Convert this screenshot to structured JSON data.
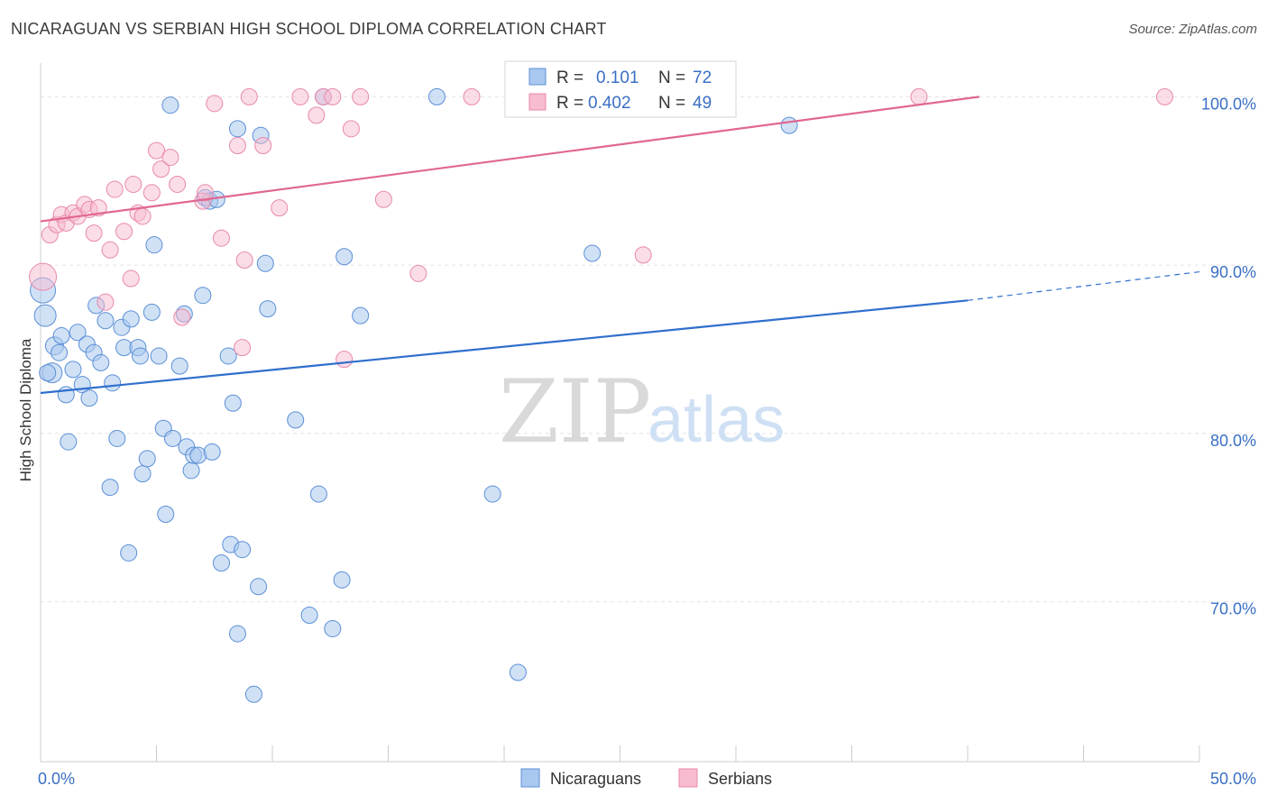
{
  "title": "NICARAGUAN VS SERBIAN HIGH SCHOOL DIPLOMA CORRELATION CHART",
  "source": "Source: ZipAtlas.com",
  "watermark": {
    "zip": "ZIP",
    "atlas": "atlas"
  },
  "legend": {
    "rows": [
      {
        "r_label": "R =",
        "r_value": "0.101",
        "n_label": "N =",
        "n_value": "72"
      },
      {
        "r_label": "R =",
        "r_value": "0.402",
        "n_label": "N =",
        "n_value": "49"
      }
    ]
  },
  "bottom_legend": [
    "Nicaraguans",
    "Serbians"
  ],
  "colors": {
    "blue_fill": "#a9c8ef",
    "blue_stroke": "#5b8fd6",
    "blue_line": "#2f6fcc",
    "pink_fill": "#f7bcd0",
    "pink_stroke": "#e889a9",
    "pink_line": "#e06792",
    "axis_label": "#3a6fc4"
  },
  "chart_data": {
    "type": "scatter",
    "title": "NICARAGUAN VS SERBIAN HIGH SCHOOL DIPLOMA CORRELATION CHART",
    "xlabel": "",
    "ylabel": "High School Diploma",
    "xlim": [
      0,
      50
    ],
    "ylim": [
      60.5,
      102
    ],
    "x_tick_labels": [
      "0.0%",
      "50.0%"
    ],
    "y_ticks": [
      70,
      80,
      90,
      100
    ],
    "y_tick_labels": [
      "70.0%",
      "80.0%",
      "90.0%",
      "100.0%"
    ],
    "grid": true,
    "legend_position": "top-center",
    "series": [
      {
        "name": "Nicaraguans",
        "r": 0.101,
        "n": 72,
        "trend": {
          "x0": 0,
          "y0": 82.4,
          "x1": 40,
          "y1": 87.9,
          "dashed_to_x": 50,
          "dashed_to_y": 89.6
        },
        "points": [
          [
            0.1,
            88.5,
            14
          ],
          [
            0.2,
            87.0,
            12
          ],
          [
            0.5,
            83.6,
            11
          ],
          [
            0.6,
            85.2,
            10
          ],
          [
            0.8,
            84.8,
            9
          ],
          [
            0.9,
            85.8,
            9
          ],
          [
            1.1,
            82.3,
            9
          ],
          [
            1.2,
            79.5,
            9
          ],
          [
            1.4,
            83.8,
            9
          ],
          [
            1.6,
            86.0,
            9
          ],
          [
            1.8,
            82.9,
            9
          ],
          [
            2.0,
            85.3,
            9
          ],
          [
            2.1,
            82.1,
            9
          ],
          [
            2.3,
            84.8,
            9
          ],
          [
            2.4,
            87.6,
            9
          ],
          [
            2.6,
            84.2,
            9
          ],
          [
            2.8,
            86.7,
            9
          ],
          [
            3.0,
            76.8,
            9
          ],
          [
            3.1,
            83.0,
            9
          ],
          [
            3.3,
            79.7,
            9
          ],
          [
            3.5,
            86.3,
            9
          ],
          [
            3.6,
            85.1,
            9
          ],
          [
            3.8,
            72.9,
            9
          ],
          [
            3.9,
            86.8,
            9
          ],
          [
            4.2,
            85.1,
            9
          ],
          [
            4.3,
            84.6,
            9
          ],
          [
            4.4,
            77.6,
            9
          ],
          [
            4.6,
            78.5,
            9
          ],
          [
            4.8,
            87.2,
            9
          ],
          [
            4.9,
            91.2,
            9
          ],
          [
            5.1,
            84.6,
            9
          ],
          [
            5.3,
            80.3,
            9
          ],
          [
            5.4,
            75.2,
            9
          ],
          [
            5.6,
            99.5,
            9
          ],
          [
            5.7,
            79.7,
            9
          ],
          [
            6.0,
            84.0,
            9
          ],
          [
            6.2,
            87.1,
            9
          ],
          [
            6.3,
            79.2,
            9
          ],
          [
            6.5,
            77.8,
            9
          ],
          [
            6.6,
            78.7,
            9
          ],
          [
            6.8,
            78.7,
            9
          ],
          [
            7.0,
            88.2,
            9
          ],
          [
            7.1,
            94.0,
            9
          ],
          [
            7.3,
            93.8,
            9
          ],
          [
            7.4,
            78.9,
            9
          ],
          [
            7.6,
            93.9,
            9
          ],
          [
            7.8,
            72.3,
            9
          ],
          [
            8.1,
            84.6,
            9
          ],
          [
            8.2,
            73.4,
            9
          ],
          [
            8.3,
            81.8,
            9
          ],
          [
            8.5,
            98.1,
            9
          ],
          [
            8.5,
            68.1,
            9
          ],
          [
            8.7,
            73.1,
            9
          ],
          [
            9.2,
            64.5,
            9
          ],
          [
            9.4,
            70.9,
            9
          ],
          [
            9.5,
            97.7,
            9
          ],
          [
            9.8,
            87.4,
            9
          ],
          [
            9.7,
            90.1,
            9
          ],
          [
            11.0,
            80.8,
            9
          ],
          [
            11.6,
            69.2,
            9
          ],
          [
            12.0,
            76.4,
            9
          ],
          [
            12.2,
            100.0,
            9
          ],
          [
            12.6,
            68.4,
            9
          ],
          [
            13.0,
            71.3,
            9
          ],
          [
            13.1,
            90.5,
            9
          ],
          [
            13.8,
            87.0,
            9
          ],
          [
            17.1,
            100.0,
            9
          ],
          [
            19.5,
            76.4,
            9
          ],
          [
            20.6,
            65.8,
            9
          ],
          [
            23.8,
            90.7,
            9
          ],
          [
            32.3,
            98.3,
            9
          ],
          [
            0.3,
            83.6,
            9
          ]
        ]
      },
      {
        "name": "Serbians",
        "r": 0.402,
        "n": 49,
        "trend": {
          "x0": 0,
          "y0": 92.6,
          "x1": 40.5,
          "y1": 100.0
        },
        "points": [
          [
            0.1,
            89.3,
            15
          ],
          [
            0.4,
            91.8,
            9
          ],
          [
            0.7,
            92.4,
            9
          ],
          [
            0.9,
            93.0,
            9
          ],
          [
            1.1,
            92.5,
            9
          ],
          [
            1.4,
            93.1,
            9
          ],
          [
            1.6,
            92.9,
            9
          ],
          [
            1.9,
            93.6,
            9
          ],
          [
            2.1,
            93.3,
            9
          ],
          [
            2.3,
            91.9,
            9
          ],
          [
            2.5,
            93.4,
            9
          ],
          [
            2.8,
            87.8,
            9
          ],
          [
            3.0,
            90.9,
            9
          ],
          [
            3.2,
            94.5,
            9
          ],
          [
            3.6,
            92.0,
            9
          ],
          [
            3.9,
            89.2,
            9
          ],
          [
            4.0,
            94.8,
            9
          ],
          [
            4.2,
            93.1,
            9
          ],
          [
            4.4,
            92.9,
            9
          ],
          [
            4.8,
            94.3,
            9
          ],
          [
            5.0,
            96.8,
            9
          ],
          [
            5.2,
            95.7,
            9
          ],
          [
            5.6,
            96.4,
            9
          ],
          [
            5.9,
            94.8,
            9
          ],
          [
            6.1,
            86.9,
            9
          ],
          [
            7.0,
            93.8,
            9
          ],
          [
            7.1,
            94.3,
            9
          ],
          [
            7.5,
            99.6,
            9
          ],
          [
            7.8,
            91.6,
            9
          ],
          [
            8.5,
            97.1,
            9
          ],
          [
            8.7,
            85.1,
            9
          ],
          [
            8.8,
            90.3,
            9
          ],
          [
            9.0,
            100.0,
            9
          ],
          [
            9.6,
            97.1,
            9
          ],
          [
            10.3,
            93.4,
            9
          ],
          [
            11.2,
            100.0,
            9
          ],
          [
            11.9,
            98.9,
            9
          ],
          [
            12.2,
            100.0,
            9
          ],
          [
            12.6,
            100.0,
            9
          ],
          [
            13.1,
            84.4,
            9
          ],
          [
            13.4,
            98.1,
            9
          ],
          [
            13.8,
            100.0,
            9
          ],
          [
            14.8,
            93.9,
            9
          ],
          [
            16.3,
            89.5,
            9
          ],
          [
            18.6,
            100.0,
            9
          ],
          [
            20.5,
            100.0,
            9
          ],
          [
            26.0,
            90.6,
            9
          ],
          [
            37.9,
            100.0,
            9
          ],
          [
            48.5,
            100.0,
            9
          ]
        ]
      }
    ]
  }
}
